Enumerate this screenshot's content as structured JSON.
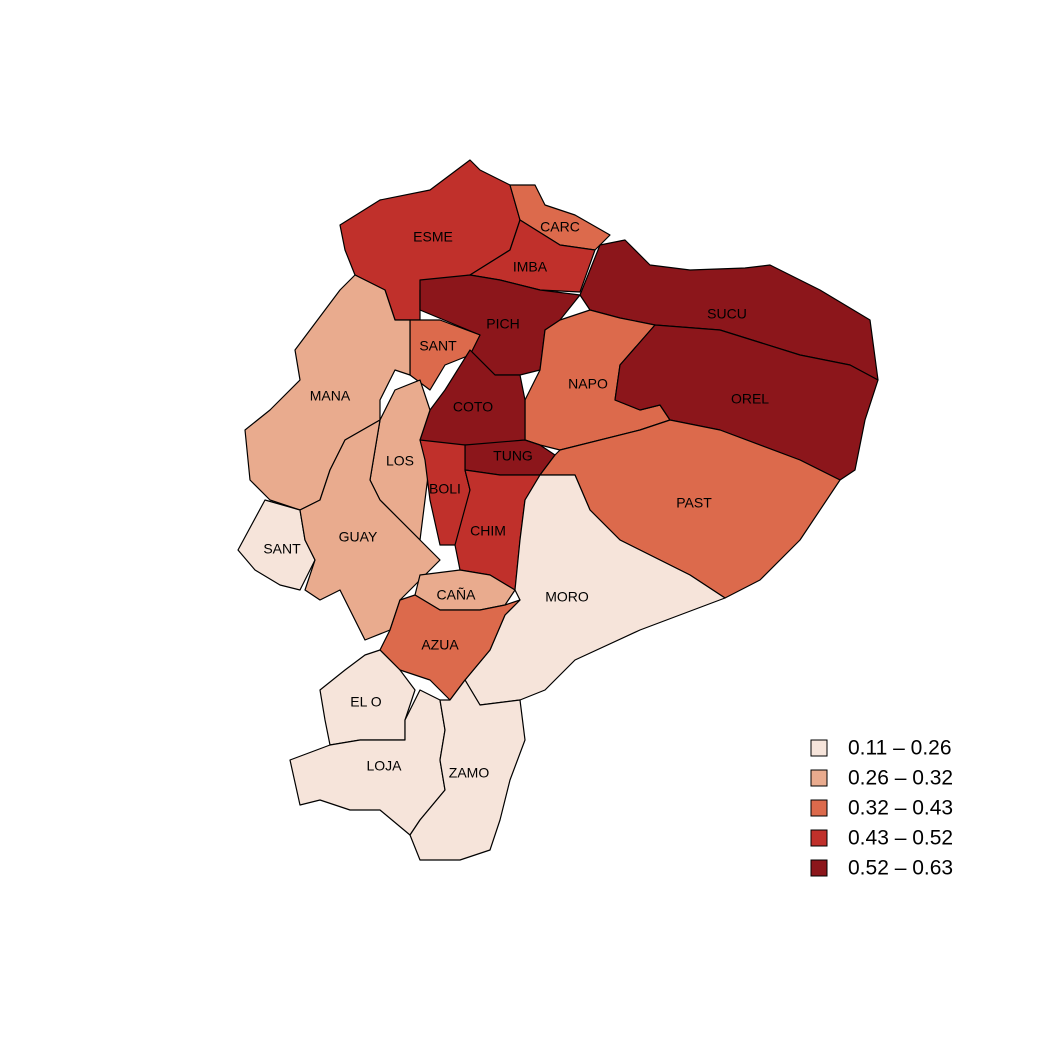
{
  "map": {
    "legend": [
      {
        "label": "0.11 – 0.26",
        "color": "#f6e4da"
      },
      {
        "label": "0.26 – 0.32",
        "color": "#e9ab8e"
      },
      {
        "label": "0.32 – 0.43",
        "color": "#dc6a4c"
      },
      {
        "label": "0.43 – 0.52",
        "color": "#c0302b"
      },
      {
        "label": "0.52 – 0.63",
        "color": "#8c161b"
      }
    ],
    "regions": [
      {
        "label": "ESME",
        "color": "#c0302b"
      },
      {
        "label": "CARC",
        "color": "#dc6a4c"
      },
      {
        "label": "IMBA",
        "color": "#c0302b"
      },
      {
        "label": "PICH",
        "color": "#8c161b"
      },
      {
        "label": "SUCU",
        "color": "#8c161b"
      },
      {
        "label": "SANT",
        "color": "#dc6a4c"
      },
      {
        "label": "MANA",
        "color": "#e9ab8e"
      },
      {
        "label": "NAPO",
        "color": "#dc6a4c"
      },
      {
        "label": "OREL",
        "color": "#8c161b"
      },
      {
        "label": "COTO",
        "color": "#8c161b"
      },
      {
        "label": "LOS",
        "color": "#e9ab8e"
      },
      {
        "label": "TUNG",
        "color": "#8c161b"
      },
      {
        "label": "BOLI",
        "color": "#c0302b"
      },
      {
        "label": "PAST",
        "color": "#dc6a4c"
      },
      {
        "label": "CHIM",
        "color": "#c0302b"
      },
      {
        "label": "SANT",
        "color": "#f6e4da"
      },
      {
        "label": "GUAY",
        "color": "#e9ab8e"
      },
      {
        "label": "MORO",
        "color": "#f6e4da"
      },
      {
        "label": "CAÑA",
        "color": "#e9ab8e"
      },
      {
        "label": "AZUA",
        "color": "#dc6a4c"
      },
      {
        "label": "EL O",
        "color": "#f6e4da"
      },
      {
        "label": "LOJA",
        "color": "#f6e4da"
      },
      {
        "label": "ZAMO",
        "color": "#f6e4da"
      }
    ]
  }
}
